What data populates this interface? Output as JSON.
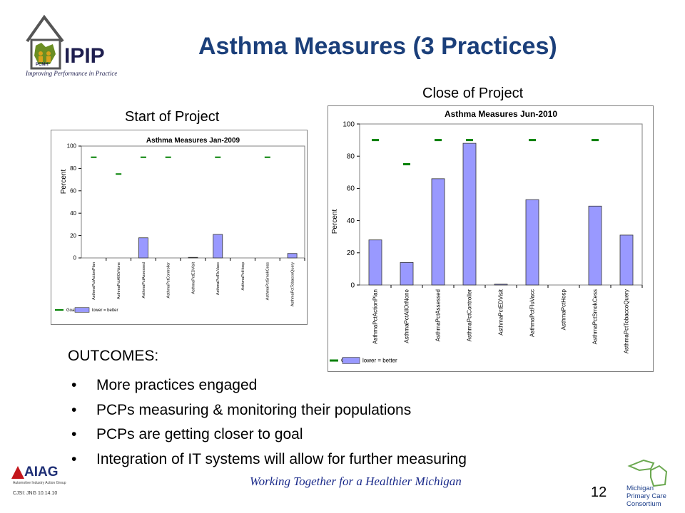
{
  "logo": {
    "word": "IPIP",
    "badge": "PCMH",
    "tagline": "Improving Performance in Practice"
  },
  "title": "Asthma Measures (3 Practices)",
  "captions": {
    "start": "Start of Project",
    "close": "Close of Project"
  },
  "outcomes": {
    "heading": "OUTCOMES:",
    "bullet_glyph": "•",
    "items": [
      "More practices engaged",
      "PCPs measuring & monitoring their populations",
      "PCPs are getting closer to goal",
      "Integration of IT systems will allow for further measuring"
    ]
  },
  "footer": {
    "motto": "Working Together for a Healthier Michigan",
    "page": "12",
    "code": "CJSI: JNG 10.14.10",
    "aiag_word": "AIAG",
    "aiag_sub": "Automotive Industry Action Group",
    "mpcc_lines": [
      "Michigan",
      "Primary Care",
      "Consortium"
    ]
  },
  "colors": {
    "bar": "#9999ff",
    "goal": "#008000",
    "title": "#1b3f7a"
  },
  "chart_data": [
    {
      "type": "bar",
      "title": "Asthma Measures Jan-2009",
      "ylabel": "Percent",
      "ylim": [
        0,
        100
      ],
      "yticks": [
        0,
        20,
        40,
        60,
        80,
        100
      ],
      "categories": [
        "AsthmaPctActionPlan",
        "AsthmaPctAllOrNone",
        "AsthmaPctAssessed",
        "AsthmaPctController",
        "AsthmaPctEDVisit",
        "AsthmaPctFluVacc",
        "AsthmaPctHosp",
        "AsthmaPctSmokCess",
        "AsthmaPctTobaccoQuery"
      ],
      "series": [
        {
          "name": "lower = better",
          "values": [
            0,
            0,
            18,
            0,
            0.5,
            21,
            0,
            0,
            4
          ]
        },
        {
          "name": "Goal",
          "values": [
            90,
            75,
            90,
            90,
            null,
            90,
            null,
            90,
            null
          ]
        }
      ],
      "legend": [
        "Goal",
        "lower = better"
      ],
      "legend_position": "bottom"
    },
    {
      "type": "bar",
      "title": "Asthma Measures Jun-2010",
      "ylabel": "Percent",
      "ylim": [
        0,
        100
      ],
      "yticks": [
        0,
        20,
        40,
        60,
        80,
        100
      ],
      "categories": [
        "AsthmaPctActionPlan",
        "AsthmaPctAllOrNone",
        "AsthmaPctAssessed",
        "AsthmaPctController",
        "AsthmaPctEDVisit",
        "AsthmaPctFluVacc",
        "AsthmaPctHosp",
        "AsthmaPctSmokCess",
        "AsthmaPctTobaccoQuery"
      ],
      "series": [
        {
          "name": "lower = better",
          "values": [
            28,
            14,
            66,
            88,
            0.5,
            53,
            0,
            49,
            31
          ]
        },
        {
          "name": "Goal",
          "values": [
            90,
            75,
            90,
            90,
            null,
            90,
            null,
            90,
            null
          ]
        }
      ],
      "legend": [
        "Goal",
        "lower = better"
      ],
      "legend_position": "bottom"
    }
  ]
}
